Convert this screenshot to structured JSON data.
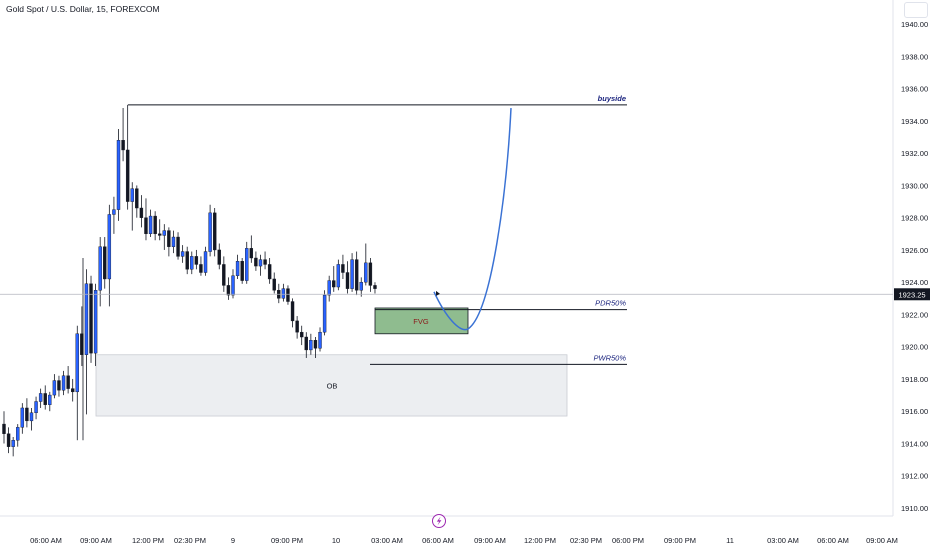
{
  "header": {
    "title": "Gold Spot / U.S. Dollar, 15, FOREXCOM"
  },
  "colors": {
    "up": "#2962ff",
    "down": "#131722",
    "level": "#131722",
    "label": "#1a237e",
    "fvg_fill": "#8fbc8f",
    "ob_fill": "#eceef1",
    "projection": "#3a72d4",
    "price_tag": "#131722",
    "crosshair": "#b2b5be"
  },
  "chart_data": {
    "type": "candlestick",
    "symbol": "Gold Spot / U.S. Dollar",
    "interval": "15",
    "source": "FOREXCOM",
    "ylim": [
      1909.5,
      1941.5
    ],
    "y_ticks": [
      1910,
      1912,
      1914,
      1916,
      1918,
      1920,
      1922,
      1924,
      1926,
      1928,
      1930,
      1932,
      1934,
      1936,
      1938,
      1940
    ],
    "y_tick_labels": [
      "1910.00",
      "1912.00",
      "1914.00",
      "1916.00",
      "1918.00",
      "1920.00",
      "1922.00",
      "1924.00",
      "1926.00",
      "1928.00",
      "1930.00",
      "1932.00",
      "1934.00",
      "1936.00",
      "1938.00",
      "1940.00"
    ],
    "x_labels": [
      "06:00 AM",
      "09:00 AM",
      "12:00 PM",
      "02:30 PM",
      "9",
      "09:00 PM",
      "10",
      "03:00 AM",
      "06:00 AM",
      "09:00 AM",
      "12:00 PM",
      "02:30 PM",
      "06:00 PM",
      "09:00 PM",
      "11",
      "03:00 AM",
      "06:00 AM",
      "09:00 AM"
    ],
    "current_price": 1923.25,
    "current_price_label": "1923.25",
    "candles": [
      [
        1915.2,
        1916.0,
        1914.0,
        1914.6
      ],
      [
        1914.6,
        1915.0,
        1913.4,
        1913.8
      ],
      [
        1913.8,
        1914.4,
        1913.2,
        1914.2
      ],
      [
        1914.2,
        1915.2,
        1913.8,
        1915.0
      ],
      [
        1915.0,
        1916.5,
        1914.6,
        1916.2
      ],
      [
        1916.2,
        1916.8,
        1915.0,
        1915.4
      ],
      [
        1915.4,
        1916.2,
        1914.8,
        1915.9
      ],
      [
        1915.9,
        1916.9,
        1915.5,
        1916.6
      ],
      [
        1916.6,
        1917.4,
        1916.2,
        1917.1
      ],
      [
        1917.1,
        1917.6,
        1916.1,
        1916.4
      ],
      [
        1916.4,
        1917.2,
        1916.0,
        1917.0
      ],
      [
        1917.0,
        1918.3,
        1916.8,
        1917.9
      ],
      [
        1917.9,
        1918.2,
        1916.9,
        1917.3
      ],
      [
        1917.3,
        1918.5,
        1917.0,
        1918.2
      ],
      [
        1918.2,
        1918.8,
        1917.1,
        1917.4
      ],
      [
        1917.4,
        1918.0,
        1916.6,
        1917.2
      ],
      [
        1917.2,
        1921.3,
        1914.2,
        1920.8
      ],
      [
        1920.8,
        1922.5,
        1918.8,
        1919.5
      ],
      [
        1919.5,
        1924.8,
        1915.8,
        1923.9
      ],
      [
        1923.9,
        1924.4,
        1919.0,
        1919.6
      ],
      [
        1919.6,
        1923.9,
        1918.8,
        1923.5
      ],
      [
        1923.5,
        1926.8,
        1922.5,
        1926.2
      ],
      [
        1926.2,
        1926.8,
        1923.6,
        1924.2
      ],
      [
        1924.2,
        1928.8,
        1922.5,
        1928.2
      ],
      [
        1928.2,
        1929.3,
        1927.0,
        1928.5
      ],
      [
        1928.5,
        1933.5,
        1927.8,
        1932.8
      ],
      [
        1932.8,
        1934.8,
        1931.5,
        1932.2
      ],
      [
        1932.2,
        1935.0,
        1928.5,
        1929.0
      ],
      [
        1929.0,
        1930.2,
        1927.2,
        1929.8
      ],
      [
        1929.8,
        1930.0,
        1928.0,
        1928.6
      ],
      [
        1928.6,
        1929.4,
        1927.4,
        1928.0
      ],
      [
        1928.0,
        1929.2,
        1926.6,
        1927.0
      ],
      [
        1927.0,
        1928.5,
        1926.8,
        1928.1
      ],
      [
        1928.1,
        1928.4,
        1926.6,
        1927.0
      ],
      [
        1927.0,
        1927.9,
        1926.6,
        1926.9
      ],
      [
        1926.9,
        1927.6,
        1926.0,
        1927.2
      ],
      [
        1927.2,
        1927.4,
        1925.6,
        1926.2
      ],
      [
        1926.2,
        1927.2,
        1925.8,
        1926.8
      ],
      [
        1926.8,
        1927.1,
        1925.4,
        1925.6
      ],
      [
        1925.6,
        1926.3,
        1925.2,
        1925.9
      ],
      [
        1925.9,
        1926.2,
        1924.5,
        1924.8
      ],
      [
        1924.8,
        1925.9,
        1924.5,
        1925.6
      ],
      [
        1925.6,
        1926.0,
        1924.8,
        1925.1
      ],
      [
        1925.1,
        1925.6,
        1924.4,
        1924.6
      ],
      [
        1924.6,
        1926.2,
        1924.4,
        1925.9
      ],
      [
        1925.9,
        1928.8,
        1925.6,
        1928.3
      ],
      [
        1928.3,
        1928.6,
        1925.6,
        1926.0
      ],
      [
        1926.0,
        1926.4,
        1924.8,
        1925.1
      ],
      [
        1925.1,
        1925.6,
        1923.4,
        1923.8
      ],
      [
        1923.8,
        1924.3,
        1922.9,
        1923.2
      ],
      [
        1923.2,
        1924.8,
        1923.0,
        1924.4
      ],
      [
        1924.4,
        1925.7,
        1924.2,
        1925.3
      ],
      [
        1925.3,
        1925.5,
        1923.9,
        1924.1
      ],
      [
        1924.1,
        1926.5,
        1923.9,
        1926.1
      ],
      [
        1926.1,
        1926.9,
        1925.2,
        1925.5
      ],
      [
        1925.5,
        1925.9,
        1924.7,
        1925.0
      ],
      [
        1925.0,
        1925.7,
        1924.4,
        1925.4
      ],
      [
        1925.4,
        1925.9,
        1924.8,
        1925.1
      ],
      [
        1925.1,
        1925.5,
        1923.9,
        1924.2
      ],
      [
        1924.2,
        1924.6,
        1923.3,
        1923.5
      ],
      [
        1923.5,
        1923.9,
        1922.7,
        1923.0
      ],
      [
        1923.0,
        1923.9,
        1922.8,
        1923.6
      ],
      [
        1923.6,
        1923.8,
        1922.6,
        1922.8
      ],
      [
        1922.8,
        1923.0,
        1921.2,
        1921.6
      ],
      [
        1921.6,
        1921.9,
        1920.5,
        1920.9
      ],
      [
        1920.9,
        1921.3,
        1920.1,
        1920.6
      ],
      [
        1920.6,
        1920.9,
        1919.3,
        1919.8
      ],
      [
        1919.8,
        1920.8,
        1919.5,
        1920.4
      ],
      [
        1920.4,
        1920.6,
        1919.3,
        1919.9
      ],
      [
        1919.9,
        1921.2,
        1919.7,
        1920.9
      ],
      [
        1920.9,
        1923.5,
        1920.7,
        1923.2
      ],
      [
        1923.2,
        1924.4,
        1922.8,
        1924.1
      ],
      [
        1924.1,
        1925.0,
        1923.4,
        1923.7
      ],
      [
        1923.7,
        1925.4,
        1923.5,
        1925.1
      ],
      [
        1925.1,
        1925.7,
        1924.2,
        1924.6
      ],
      [
        1924.6,
        1925.3,
        1923.3,
        1923.6
      ],
      [
        1923.6,
        1925.8,
        1923.4,
        1925.4
      ],
      [
        1925.4,
        1925.9,
        1923.2,
        1923.5
      ],
      [
        1923.5,
        1924.3,
        1923.1,
        1924.0
      ],
      [
        1924.0,
        1926.4,
        1923.8,
        1925.2
      ],
      [
        1925.2,
        1925.5,
        1923.4,
        1923.8
      ],
      [
        1923.8,
        1924.0,
        1923.3,
        1923.6
      ]
    ],
    "annotations": {
      "buyside": {
        "label": "buyside",
        "price": 1935.0
      },
      "pdr50": {
        "label": "PDR50%",
        "price": 1922.3
      },
      "pwr50": {
        "label": "PWR50%",
        "price": 1918.9
      },
      "fvg": {
        "label": "FVG",
        "top": 1922.4,
        "bottom": 1920.8
      },
      "ob": {
        "label": "OB",
        "top": 1919.5,
        "bottom": 1915.7
      },
      "projection": {
        "start": 1923.4,
        "low": 1921.1,
        "end": 1934.8
      }
    }
  }
}
